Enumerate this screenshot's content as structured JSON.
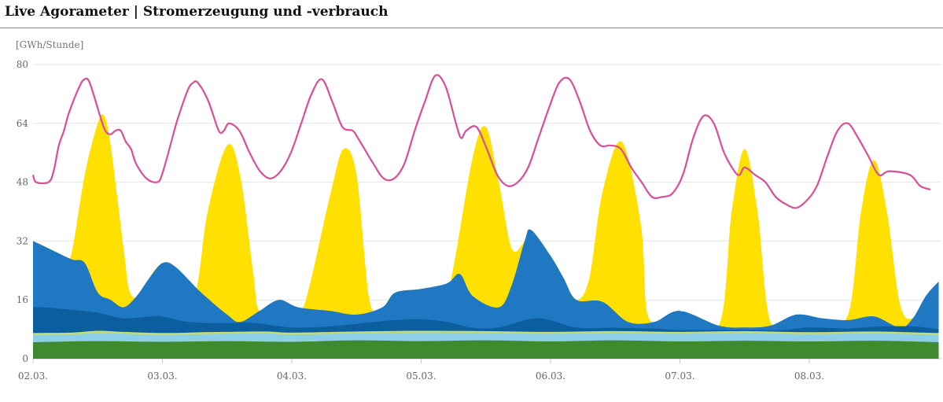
{
  "page": {
    "title": "Live Agorameter | Stromerzeugung und -verbrauch"
  },
  "chart_data": {
    "type": "area",
    "ylabel": "[GWh/Stunde]",
    "ylim": [
      0,
      80
    ],
    "yticks": [
      0,
      16,
      32,
      48,
      64,
      80
    ],
    "grid": true,
    "x_start": 0,
    "x_end": 7,
    "xtick_positions": [
      0,
      1,
      2,
      3,
      4,
      5,
      6
    ],
    "xtick_labels": [
      "02.03.",
      "03.03.",
      "04.03.",
      "05.03.",
      "06.03.",
      "07.03.",
      "08.03."
    ],
    "colors": {
      "base_green": "#3d8a2f",
      "hydro_lightblue": "#8ecfe8",
      "biomass_yellowgreen": "#c8dc6e",
      "offshore_darkblue": "#0b5f9e",
      "onshore_blue": "#2077c2",
      "solar_yellow": "#ffe000",
      "consumption_pink": "#d84f95"
    },
    "stack": [
      {
        "key": "base",
        "color": "#3d8a2f",
        "points": [
          [
            0,
            4.5
          ],
          [
            0.5,
            4.8
          ],
          [
            1,
            4.6
          ],
          [
            1.5,
            4.8
          ],
          [
            2,
            4.6
          ],
          [
            2.5,
            5
          ],
          [
            3,
            4.8
          ],
          [
            3.5,
            5
          ],
          [
            4,
            4.7
          ],
          [
            4.5,
            5
          ],
          [
            5,
            4.7
          ],
          [
            5.5,
            4.9
          ],
          [
            6,
            4.7
          ],
          [
            6.5,
            4.9
          ],
          [
            7,
            4.5
          ]
        ]
      },
      {
        "key": "hydro",
        "color": "#8ecfe8",
        "points": [
          [
            0,
            6.5
          ],
          [
            0.3,
            6.6
          ],
          [
            0.5,
            7
          ],
          [
            0.7,
            6.8
          ],
          [
            1,
            6.5
          ],
          [
            1.3,
            6.7
          ],
          [
            1.5,
            6.8
          ],
          [
            1.8,
            6.9
          ],
          [
            2,
            6.6
          ],
          [
            2.5,
            6.9
          ],
          [
            3,
            7.1
          ],
          [
            3.5,
            7
          ],
          [
            4,
            6.8
          ],
          [
            4.5,
            7
          ],
          [
            5,
            6.8
          ],
          [
            5.5,
            7
          ],
          [
            6,
            6.7
          ],
          [
            6.5,
            6.9
          ],
          [
            7,
            6.5
          ]
        ]
      },
      {
        "key": "biomass",
        "color": "#c8dc6e",
        "points": [
          [
            0,
            7
          ],
          [
            0.3,
            7.1
          ],
          [
            0.5,
            7.6
          ],
          [
            0.7,
            7.3
          ],
          [
            1,
            7
          ],
          [
            1.3,
            7.2
          ],
          [
            1.5,
            7.3
          ],
          [
            1.8,
            7.4
          ],
          [
            2,
            7.1
          ],
          [
            2.5,
            7.4
          ],
          [
            3,
            7.6
          ],
          [
            3.5,
            7.5
          ],
          [
            4,
            7.3
          ],
          [
            4.5,
            7.5
          ],
          [
            5,
            7.3
          ],
          [
            5.5,
            7.5
          ],
          [
            6,
            7.2
          ],
          [
            6.5,
            7.4
          ],
          [
            7,
            7
          ]
        ]
      },
      {
        "key": "offshore",
        "color": "#0b5f9e",
        "points": [
          [
            0,
            14
          ],
          [
            0.08,
            14
          ],
          [
            0.3,
            13.3
          ],
          [
            0.5,
            12.5
          ],
          [
            0.7,
            11
          ],
          [
            0.9,
            11.5
          ],
          [
            1,
            11.5
          ],
          [
            1.2,
            10
          ],
          [
            1.5,
            9.7
          ],
          [
            1.7,
            9.8
          ],
          [
            2,
            8.5
          ],
          [
            2.3,
            8.8
          ],
          [
            2.5,
            9.5
          ],
          [
            2.8,
            10.5
          ],
          [
            3,
            10.7
          ],
          [
            3.2,
            10
          ],
          [
            3.4,
            8.4
          ],
          [
            3.6,
            8.5
          ],
          [
            3.9,
            11
          ],
          [
            4.2,
            8.5
          ],
          [
            4.5,
            8.4
          ],
          [
            4.8,
            8.2
          ],
          [
            5,
            7.8
          ],
          [
            5.3,
            7.8
          ],
          [
            5.5,
            7.8
          ],
          [
            5.8,
            7.8
          ],
          [
            6,
            8.5
          ],
          [
            6.3,
            8.2
          ],
          [
            6.5,
            8.7
          ],
          [
            6.8,
            8.8
          ],
          [
            7,
            8
          ]
        ]
      },
      {
        "key": "onshore",
        "color": "#2077c2",
        "points": [
          [
            0,
            32
          ],
          [
            0.15,
            29.5
          ],
          [
            0.3,
            27
          ],
          [
            0.4,
            26
          ],
          [
            0.5,
            18
          ],
          [
            0.6,
            16
          ],
          [
            0.7,
            14
          ],
          [
            0.8,
            17
          ],
          [
            0.9,
            22
          ],
          [
            1,
            26
          ],
          [
            1.1,
            25
          ],
          [
            1.3,
            18
          ],
          [
            1.5,
            12
          ],
          [
            1.6,
            10
          ],
          [
            1.75,
            13
          ],
          [
            1.9,
            16
          ],
          [
            2.05,
            14
          ],
          [
            2.3,
            13
          ],
          [
            2.5,
            12
          ],
          [
            2.7,
            14
          ],
          [
            2.8,
            18
          ],
          [
            3,
            19
          ],
          [
            3.2,
            20.5
          ],
          [
            3.3,
            23
          ],
          [
            3.4,
            17
          ],
          [
            3.6,
            14
          ],
          [
            3.7,
            20
          ],
          [
            3.8,
            32
          ],
          [
            3.85,
            35
          ],
          [
            4,
            28
          ],
          [
            4.1,
            22
          ],
          [
            4.2,
            16
          ],
          [
            4.4,
            15.5
          ],
          [
            4.6,
            10
          ],
          [
            4.8,
            10
          ],
          [
            5,
            13
          ],
          [
            5.3,
            9
          ],
          [
            5.5,
            8.5
          ],
          [
            5.7,
            9
          ],
          [
            5.9,
            12
          ],
          [
            6.1,
            11
          ],
          [
            6.3,
            10.5
          ],
          [
            6.5,
            11.5
          ],
          [
            6.7,
            8.5
          ],
          [
            6.8,
            11
          ],
          [
            6.9,
            17
          ],
          [
            7,
            21
          ]
        ]
      },
      {
        "key": "solar",
        "color": "#ffe000",
        "points": [
          [
            0,
            32
          ],
          [
            0.15,
            29.5
          ],
          [
            0.25,
            27
          ],
          [
            0.3,
            29
          ],
          [
            0.4,
            50
          ],
          [
            0.5,
            64
          ],
          [
            0.55,
            66
          ],
          [
            0.6,
            58
          ],
          [
            0.7,
            30
          ],
          [
            0.75,
            18
          ],
          [
            0.85,
            17
          ],
          [
            0.9,
            22
          ],
          [
            1,
            26
          ],
          [
            1.1,
            25
          ],
          [
            1.25,
            18
          ],
          [
            1.35,
            40
          ],
          [
            1.5,
            58
          ],
          [
            1.6,
            50
          ],
          [
            1.7,
            24
          ],
          [
            1.75,
            13
          ],
          [
            1.9,
            16
          ],
          [
            2,
            14
          ],
          [
            2.1,
            15
          ],
          [
            2.3,
            45
          ],
          [
            2.4,
            57
          ],
          [
            2.5,
            50
          ],
          [
            2.6,
            16
          ],
          [
            2.7,
            14
          ],
          [
            2.8,
            18
          ],
          [
            3,
            19
          ],
          [
            3.2,
            20.5
          ],
          [
            3.25,
            25
          ],
          [
            3.4,
            55
          ],
          [
            3.5,
            63
          ],
          [
            3.6,
            48
          ],
          [
            3.7,
            30
          ],
          [
            3.8,
            32
          ],
          [
            3.85,
            35
          ],
          [
            4,
            28
          ],
          [
            4.1,
            22
          ],
          [
            4.2,
            16
          ],
          [
            4.3,
            22
          ],
          [
            4.4,
            45
          ],
          [
            4.55,
            59
          ],
          [
            4.7,
            36
          ],
          [
            4.75,
            12
          ],
          [
            4.9,
            11
          ],
          [
            5,
            13
          ],
          [
            5.3,
            9
          ],
          [
            5.4,
            40
          ],
          [
            5.5,
            57
          ],
          [
            5.6,
            40
          ],
          [
            5.7,
            10
          ],
          [
            5.9,
            12
          ],
          [
            6.1,
            11
          ],
          [
            6.3,
            12
          ],
          [
            6.4,
            40
          ],
          [
            6.5,
            54
          ],
          [
            6.6,
            40
          ],
          [
            6.7,
            15
          ],
          [
            6.8,
            11
          ],
          [
            6.9,
            17
          ],
          [
            7,
            21
          ]
        ]
      }
    ],
    "consumption": {
      "color": "#d84f95",
      "points": [
        [
          0,
          50
        ],
        [
          0.03,
          48
        ],
        [
          0.15,
          48
        ],
        [
          0.2,
          51
        ],
        [
          0.25,
          58
        ],
        [
          0.3,
          62
        ],
        [
          0.35,
          67
        ],
        [
          0.45,
          74
        ],
        [
          0.5,
          76
        ],
        [
          0.55,
          75
        ],
        [
          0.65,
          66
        ],
        [
          0.7,
          62
        ],
        [
          0.75,
          61
        ],
        [
          0.8,
          62
        ],
        [
          0.85,
          62
        ],
        [
          0.9,
          59
        ],
        [
          0.95,
          57
        ],
        [
          1,
          53
        ],
        [
          1.1,
          49
        ],
        [
          1.2,
          48
        ],
        [
          1.25,
          50
        ],
        [
          1.35,
          60
        ],
        [
          1.4,
          65
        ],
        [
          1.5,
          73
        ],
        [
          1.55,
          75
        ],
        [
          1.6,
          75
        ],
        [
          1.7,
          70
        ],
        [
          1.8,
          62
        ],
        [
          1.85,
          62
        ],
        [
          1.9,
          64
        ],
        [
          2,
          62
        ],
        [
          2.1,
          56
        ],
        [
          2.2,
          51
        ],
        [
          2.3,
          49
        ],
        [
          2.4,
          51
        ],
        [
          2.5,
          56
        ],
        [
          2.6,
          64
        ],
        [
          2.7,
          72
        ],
        [
          2.8,
          76
        ],
        [
          2.9,
          70
        ],
        [
          3,
          63
        ],
        [
          3.1,
          62
        ],
        [
          3.15,
          60
        ],
        [
          3.3,
          53
        ],
        [
          3.4,
          49
        ],
        [
          3.5,
          49
        ],
        [
          3.6,
          53
        ],
        [
          3.7,
          62
        ],
        [
          3.8,
          70
        ],
        [
          3.9,
          77
        ],
        [
          4,
          74
        ],
        [
          4.1,
          64
        ],
        [
          4.15,
          60
        ],
        [
          4.2,
          62
        ],
        [
          4.3,
          63
        ],
        [
          4.4,
          57
        ],
        [
          4.5,
          50
        ],
        [
          4.6,
          47
        ],
        [
          4.7,
          48
        ],
        [
          4.8,
          52
        ],
        [
          4.9,
          60
        ],
        [
          5,
          68
        ],
        [
          5.1,
          75
        ],
        [
          5.2,
          76
        ],
        [
          5.3,
          70
        ],
        [
          5.4,
          62
        ],
        [
          5.5,
          58
        ],
        [
          5.6,
          58
        ],
        [
          5.7,
          57
        ],
        [
          5.8,
          52
        ],
        [
          5.9,
          48
        ],
        [
          6,
          44
        ],
        [
          6.1,
          44
        ],
        [
          6.2,
          45
        ],
        [
          6.3,
          50
        ],
        [
          6.4,
          60
        ],
        [
          6.5,
          66
        ],
        [
          6.6,
          64
        ],
        [
          6.7,
          56
        ],
        [
          6.8,
          51
        ],
        [
          6.85,
          50
        ],
        [
          6.9,
          52
        ],
        [
          7,
          50
        ],
        [
          7.1,
          48
        ],
        [
          7.2,
          44
        ],
        [
          7.3,
          42
        ],
        [
          7.4,
          41
        ],
        [
          7.5,
          43
        ],
        [
          7.6,
          47
        ],
        [
          7.7,
          55
        ],
        [
          7.8,
          62
        ],
        [
          7.9,
          64
        ],
        [
          8,
          60
        ],
        [
          8.1,
          55
        ],
        [
          8.2,
          50
        ],
        [
          8.3,
          51
        ],
        [
          8.5,
          50
        ],
        [
          8.6,
          47
        ],
        [
          8.7,
          46
        ]
      ]
    }
  }
}
